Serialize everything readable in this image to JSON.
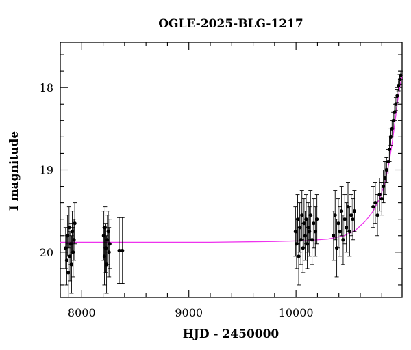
{
  "chart_data": {
    "type": "scatter",
    "title": "OGLE-2025-BLG-1217",
    "xlabel": "HJD - 2450000",
    "ylabel": "I magnitude",
    "xlim": [
      7800,
      10990
    ],
    "ylim": [
      20.55,
      17.45
    ],
    "y_inverted": true,
    "grid": false,
    "x_ticks": [
      8000,
      9000,
      10000
    ],
    "y_ticks": [
      18,
      19,
      20
    ],
    "colors": {
      "data": "#000000",
      "model": "#ee33ee",
      "frame": "#000000"
    },
    "series": [
      {
        "kind": "photometry",
        "x": [
          7850,
          7860,
          7868,
          7875,
          7882,
          7890,
          7898,
          7905,
          7912,
          7920,
          7928,
          7935,
          8205,
          8212,
          8218,
          8225,
          8232,
          8240,
          8248,
          8255,
          8262,
          8350,
          8380,
          9995,
          10005,
          10015,
          10025,
          10035,
          10045,
          10055,
          10065,
          10075,
          10085,
          10095,
          10105,
          10115,
          10125,
          10135,
          10150,
          10165,
          10180,
          10195,
          10350,
          10365,
          10380,
          10395,
          10410,
          10425,
          10440,
          10455,
          10470,
          10485,
          10500,
          10515,
          10530,
          10545,
          10720,
          10740,
          10760,
          10780,
          10800,
          10815,
          10830,
          10845,
          10860,
          10872,
          10884,
          10896,
          10908,
          10920,
          10932,
          10944,
          10956,
          10968,
          10978
        ],
        "y": [
          19.95,
          20.1,
          19.8,
          20.25,
          19.7,
          20.05,
          19.9,
          20.15,
          19.75,
          20.0,
          19.85,
          19.65,
          19.8,
          20.05,
          19.7,
          19.95,
          20.15,
          19.85,
          19.75,
          20.0,
          19.9,
          19.98,
          19.98,
          19.75,
          19.9,
          19.6,
          20.05,
          19.7,
          19.85,
          19.55,
          19.95,
          19.65,
          19.8,
          19.6,
          19.9,
          19.7,
          19.75,
          19.55,
          19.85,
          19.65,
          19.75,
          19.6,
          19.8,
          19.55,
          19.95,
          19.65,
          19.75,
          19.5,
          19.85,
          19.6,
          19.7,
          19.45,
          19.75,
          19.55,
          19.6,
          19.5,
          19.45,
          19.4,
          19.55,
          19.3,
          19.35,
          19.2,
          19.1,
          19.0,
          18.9,
          18.75,
          18.6,
          18.5,
          18.4,
          18.3,
          18.2,
          18.1,
          17.98,
          17.9,
          17.85
        ],
        "err": [
          0.25,
          0.3,
          0.25,
          0.35,
          0.25,
          0.3,
          0.25,
          0.35,
          0.25,
          0.3,
          0.25,
          0.25,
          0.3,
          0.35,
          0.25,
          0.3,
          0.35,
          0.3,
          0.25,
          0.3,
          0.3,
          0.4,
          0.4,
          0.3,
          0.3,
          0.3,
          0.35,
          0.3,
          0.3,
          0.3,
          0.3,
          0.3,
          0.3,
          0.3,
          0.3,
          0.3,
          0.3,
          0.3,
          0.3,
          0.3,
          0.3,
          0.3,
          0.3,
          0.3,
          0.35,
          0.3,
          0.3,
          0.3,
          0.3,
          0.3,
          0.3,
          0.3,
          0.3,
          0.25,
          0.25,
          0.25,
          0.25,
          0.25,
          0.25,
          0.2,
          0.2,
          0.2,
          0.2,
          0.15,
          0.15,
          0.15,
          0.1,
          0.1,
          0.1,
          0.1,
          0.08,
          0.08,
          0.06,
          0.06,
          0.05
        ]
      },
      {
        "kind": "model",
        "x": [
          7800,
          8500,
          9200,
          9800,
          10100,
          10300,
          10450,
          10550,
          10650,
          10720,
          10780,
          10830,
          10870,
          10900,
          10930,
          10950,
          10970,
          10990
        ],
        "y": [
          19.88,
          19.88,
          19.88,
          19.87,
          19.86,
          19.84,
          19.8,
          19.74,
          19.62,
          19.5,
          19.35,
          19.15,
          18.9,
          18.65,
          18.35,
          18.15,
          17.98,
          17.85
        ]
      }
    ]
  }
}
